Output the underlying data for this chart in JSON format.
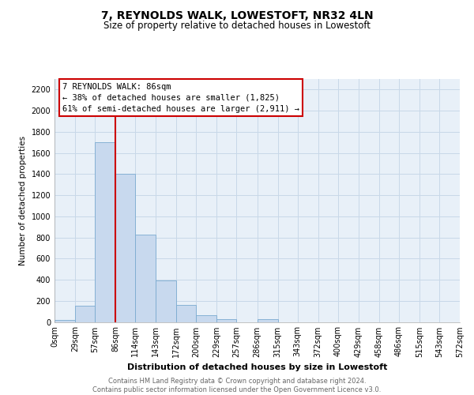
{
  "title": "7, REYNOLDS WALK, LOWESTOFT, NR32 4LN",
  "subtitle": "Size of property relative to detached houses in Lowestoft",
  "xlabel": "Distribution of detached houses by size in Lowestoft",
  "ylabel": "Number of detached properties",
  "bin_edges": [
    0,
    29,
    57,
    86,
    114,
    143,
    172,
    200,
    229,
    257,
    286,
    315,
    343,
    372,
    400,
    429,
    458,
    486,
    515,
    543,
    572
  ],
  "bin_labels": [
    "0sqm",
    "29sqm",
    "57sqm",
    "86sqm",
    "114sqm",
    "143sqm",
    "172sqm",
    "200sqm",
    "229sqm",
    "257sqm",
    "286sqm",
    "315sqm",
    "343sqm",
    "372sqm",
    "400sqm",
    "429sqm",
    "458sqm",
    "486sqm",
    "515sqm",
    "543sqm",
    "572sqm"
  ],
  "bar_heights": [
    20,
    155,
    1700,
    1400,
    830,
    390,
    160,
    65,
    28,
    0,
    28,
    0,
    0,
    0,
    0,
    0,
    0,
    0,
    0,
    0
  ],
  "bar_color": "#c8d9ee",
  "bar_edge_color": "#7aaad0",
  "property_line_x": 86,
  "property_line_color": "#cc0000",
  "ylim": [
    0,
    2300
  ],
  "yticks": [
    0,
    200,
    400,
    600,
    800,
    1000,
    1200,
    1400,
    1600,
    1800,
    2000,
    2200
  ],
  "annotation_line1": "7 REYNOLDS WALK: 86sqm",
  "annotation_line2": "← 38% of detached houses are smaller (1,825)",
  "annotation_line3": "61% of semi-detached houses are larger (2,911) →",
  "footer_text": "Contains HM Land Registry data © Crown copyright and database right 2024.\nContains public sector information licensed under the Open Government Licence v3.0.",
  "background_color": "#ffffff",
  "grid_color": "#c8d8e8",
  "plot_bg_color": "#e8f0f8"
}
